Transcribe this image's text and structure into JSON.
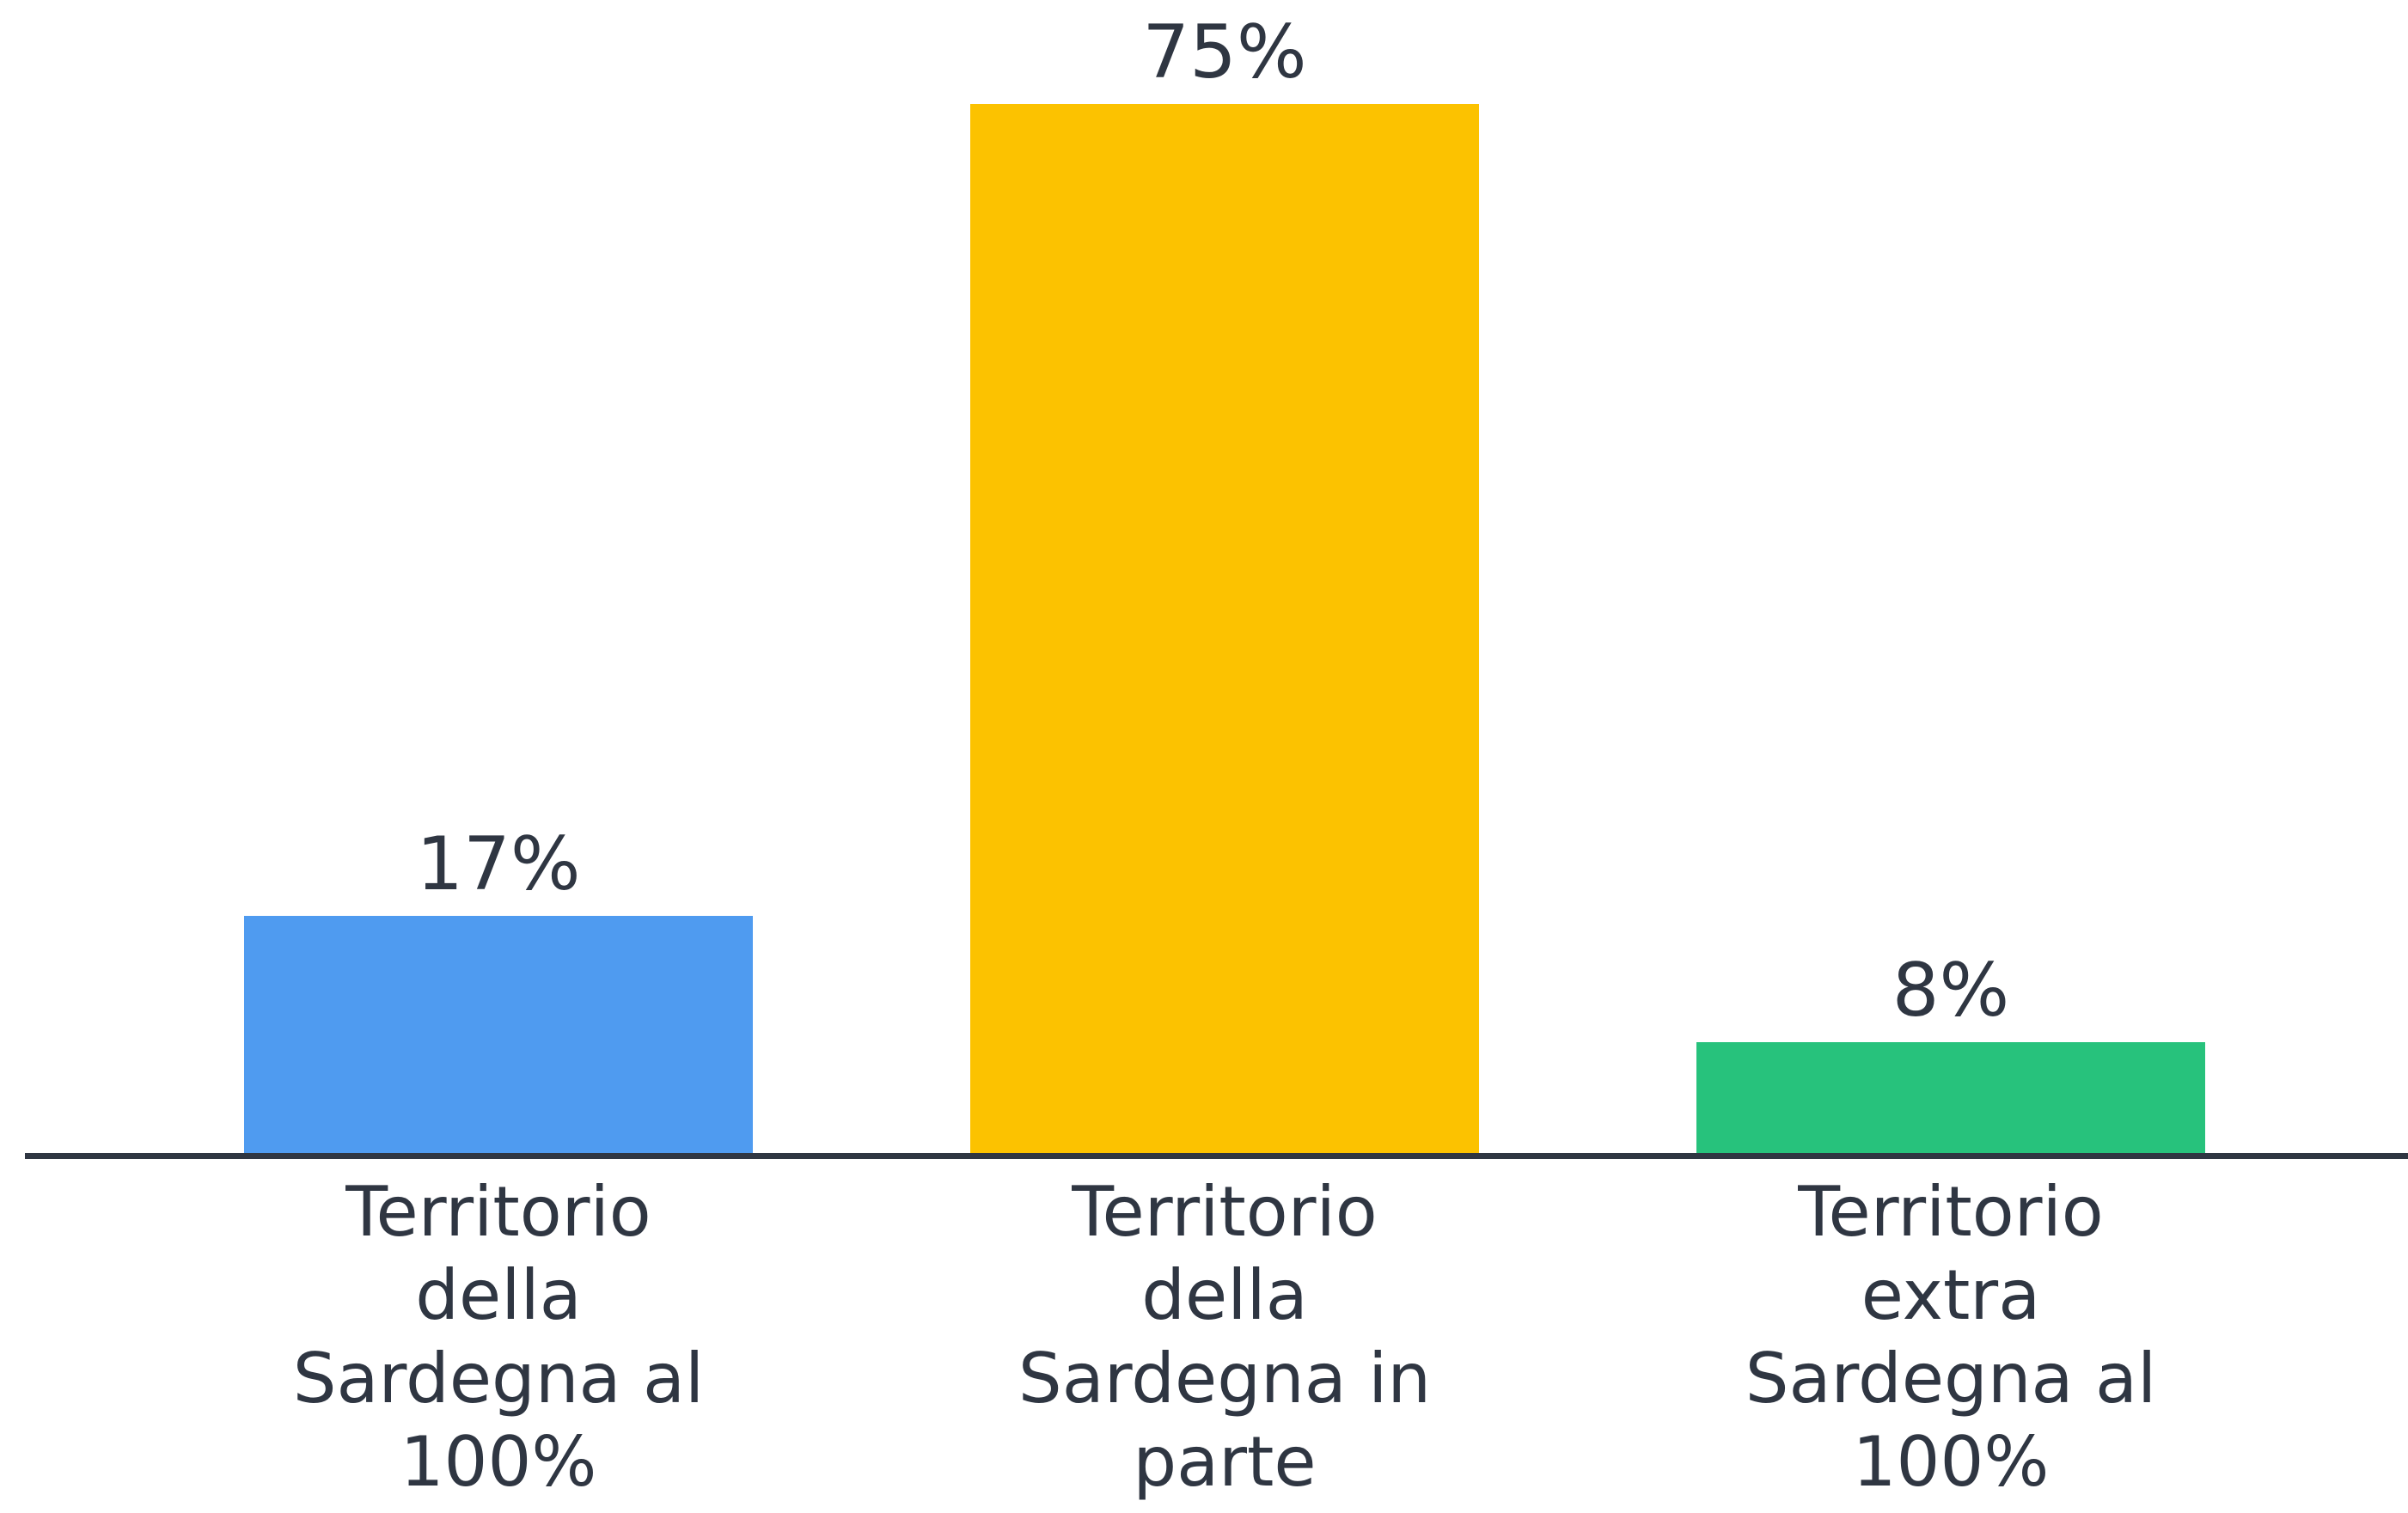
{
  "chart_data": {
    "type": "bar",
    "categories": [
      "Territorio della Sardegna al 100%",
      "Territorio della Sardegna in parte",
      "Territorio extra Sardegna al 100%"
    ],
    "values": [
      17,
      75,
      8
    ],
    "value_labels": [
      "17%",
      "75%",
      "8%"
    ],
    "colors": [
      "#4f9bf0",
      "#fcc200",
      "#27c27c"
    ]
  }
}
